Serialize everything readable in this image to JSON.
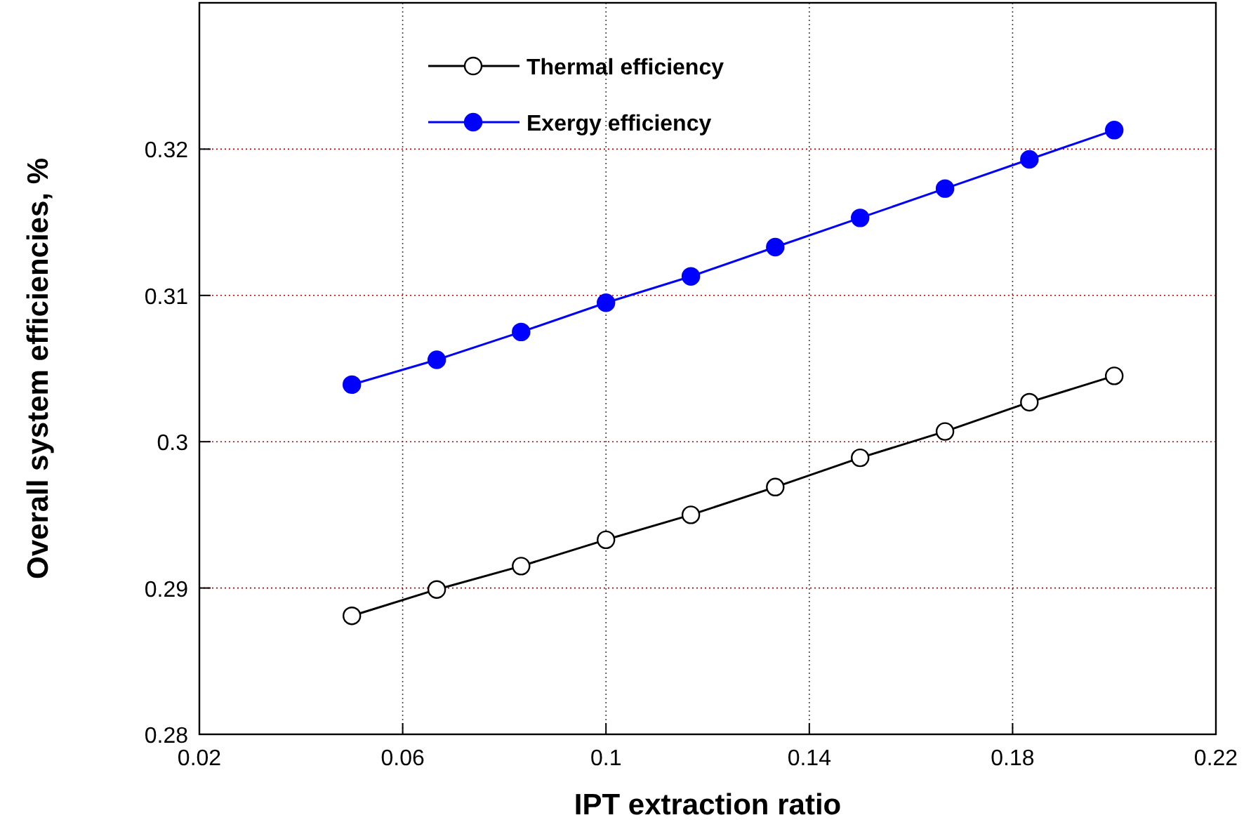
{
  "chart_data": {
    "type": "line",
    "xlabel": "IPT extraction ratio",
    "ylabel": "Overall system efficiencies, %",
    "x": [
      0.05,
      0.0667,
      0.0833,
      0.1,
      0.1167,
      0.1333,
      0.15,
      0.1667,
      0.1833,
      0.2
    ],
    "series": [
      {
        "name": "Thermal efficiency",
        "color": "#000000",
        "values": [
          0.2881,
          0.2899,
          0.2915,
          0.2933,
          0.295,
          0.2969,
          0.2989,
          0.3007,
          0.3027,
          0.3045
        ]
      },
      {
        "name": "Exergy efficiency",
        "color": "#0000ff",
        "values": [
          0.3039,
          0.3056,
          0.3075,
          0.3095,
          0.3113,
          0.3133,
          0.3153,
          0.3173,
          0.3193,
          0.3213
        ]
      }
    ],
    "xlim": [
      0.02,
      0.22
    ],
    "xticks": [
      0.02,
      0.06,
      0.1,
      0.14,
      0.18,
      0.22
    ],
    "ylim": [
      0.28,
      0.33
    ],
    "yticks": [
      0.28,
      0.29,
      0.3,
      0.31,
      0.32
    ],
    "grid": true,
    "legend": "top",
    "marker": "circle",
    "line_style": "solid"
  }
}
